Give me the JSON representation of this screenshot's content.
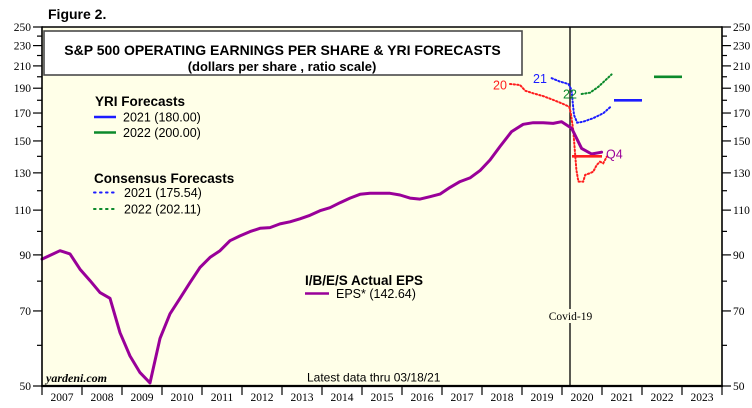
{
  "figure_label": "Figure 2.",
  "chart_data": {
    "type": "line",
    "title": "S&P 500 OPERATING EARNINGS PER SHARE & YRI FORECASTS",
    "subtitle": "(dollars per share , ratio scale)",
    "xlabel": "",
    "ylabel": "",
    "grid": false,
    "colors": {
      "plot_background": "#ffffe8",
      "title_box": "#ffffff",
      "eps": "#990099",
      "year_2020": "#ff1e1e",
      "year_2021": "#1c1cff",
      "year_2022": "#0b8a2b"
    },
    "y_axis": {
      "scale": "log",
      "range": [
        50,
        250
      ],
      "major_ticks": [
        250,
        230,
        210,
        190,
        170,
        150,
        130,
        110,
        90,
        70,
        50
      ],
      "minor_ticks": [
        240,
        220,
        200,
        180,
        160,
        140,
        120,
        100,
        80,
        60
      ],
      "sides": [
        "left",
        "right"
      ]
    },
    "x_axis": {
      "range": [
        2007,
        2024
      ],
      "tick_labels": [
        "2007",
        "2008",
        "2009",
        "2010",
        "2011",
        "2012",
        "2013",
        "2014",
        "2015",
        "2016",
        "2017",
        "2018",
        "2019",
        "2020",
        "2021",
        "2022",
        "2023"
      ]
    },
    "series": [
      {
        "id": "eps-actual",
        "name": "EPS*",
        "color": "#990099",
        "style": "solid",
        "latest": 142.64,
        "points": [
          [
            2007.0,
            88.3
          ],
          [
            2007.45,
            91.7
          ],
          [
            2007.7,
            90.4
          ],
          [
            2007.95,
            84.4
          ],
          [
            2008.2,
            80.2
          ],
          [
            2008.45,
            76.0
          ],
          [
            2008.7,
            74.1
          ],
          [
            2008.95,
            63.5
          ],
          [
            2009.2,
            57.2
          ],
          [
            2009.45,
            53.1
          ],
          [
            2009.7,
            50.7
          ],
          [
            2009.95,
            61.9
          ],
          [
            2010.2,
            69.1
          ],
          [
            2010.45,
            74.1
          ],
          [
            2010.7,
            79.5
          ],
          [
            2010.95,
            85.1
          ],
          [
            2011.2,
            89.0
          ],
          [
            2011.45,
            91.7
          ],
          [
            2011.7,
            95.9
          ],
          [
            2011.95,
            98.0
          ],
          [
            2012.2,
            99.9
          ],
          [
            2012.45,
            101.4
          ],
          [
            2012.7,
            101.7
          ],
          [
            2012.95,
            103.4
          ],
          [
            2013.2,
            104.4
          ],
          [
            2013.45,
            105.8
          ],
          [
            2013.7,
            107.5
          ],
          [
            2013.95,
            109.7
          ],
          [
            2014.2,
            111.2
          ],
          [
            2014.45,
            113.7
          ],
          [
            2014.7,
            116.1
          ],
          [
            2014.95,
            118.1
          ],
          [
            2015.2,
            118.6
          ],
          [
            2015.45,
            118.6
          ],
          [
            2015.7,
            118.6
          ],
          [
            2015.95,
            117.7
          ],
          [
            2016.2,
            116.1
          ],
          [
            2016.45,
            115.6
          ],
          [
            2016.7,
            116.8
          ],
          [
            2016.95,
            118.2
          ],
          [
            2017.2,
            121.8
          ],
          [
            2017.45,
            125.0
          ],
          [
            2017.7,
            127.1
          ],
          [
            2017.95,
            131.3
          ],
          [
            2018.2,
            137.7
          ],
          [
            2018.45,
            146.3
          ],
          [
            2018.74,
            156.4
          ],
          [
            2019.03,
            161.6
          ],
          [
            2019.28,
            162.8
          ],
          [
            2019.53,
            162.8
          ],
          [
            2019.78,
            162.3
          ],
          [
            2019.99,
            163.5
          ],
          [
            2020.24,
            158.8
          ],
          [
            2020.49,
            145.1
          ],
          [
            2020.74,
            141.5
          ],
          [
            2020.99,
            142.64
          ]
        ]
      },
      {
        "id": "consensus-2020",
        "name": "Consensus 2020",
        "color": "#ff1e1e",
        "style": "dotted",
        "points": [
          [
            2018.7,
            193.6
          ],
          [
            2018.95,
            192.8
          ],
          [
            2019.08,
            187.9
          ],
          [
            2019.28,
            185.7
          ],
          [
            2019.53,
            183.4
          ],
          [
            2019.78,
            180.3
          ],
          [
            2019.99,
            177.6
          ],
          [
            2020.18,
            174.9
          ],
          [
            2020.22,
            170.0
          ],
          [
            2020.28,
            157.6
          ],
          [
            2020.32,
            144.0
          ],
          [
            2020.36,
            131.7
          ],
          [
            2020.41,
            125.0
          ],
          [
            2020.53,
            125.0
          ],
          [
            2020.58,
            128.8
          ],
          [
            2020.7,
            129.8
          ],
          [
            2020.78,
            130.7
          ],
          [
            2020.87,
            134.7
          ],
          [
            2020.95,
            136.7
          ],
          [
            2021.03,
            135.7
          ],
          [
            2021.12,
            139.8
          ]
        ]
      },
      {
        "id": "consensus-2021",
        "name": "Consensus 2021",
        "color": "#1c1cff",
        "style": "dotted",
        "latest": 175.54,
        "points": [
          [
            2019.74,
            198.7
          ],
          [
            2019.95,
            195.7
          ],
          [
            2020.16,
            193.6
          ],
          [
            2020.24,
            188.5
          ],
          [
            2020.27,
            177.6
          ],
          [
            2020.3,
            168.5
          ],
          [
            2020.38,
            162.8
          ],
          [
            2020.53,
            163.5
          ],
          [
            2020.78,
            166.1
          ],
          [
            2021.03,
            169.8
          ],
          [
            2021.24,
            175.54
          ]
        ]
      },
      {
        "id": "consensus-2022",
        "name": "Consensus 2022",
        "color": "#0b8a2b",
        "style": "dotted",
        "latest": 202.11,
        "points": [
          [
            2020.49,
            185.1
          ],
          [
            2020.7,
            186.2
          ],
          [
            2020.91,
            191.2
          ],
          [
            2021.24,
            202.11
          ]
        ]
      }
    ],
    "forecast_levels": [
      {
        "id": "yri-2020",
        "name": "YRI 2020",
        "value": 140,
        "x_range": [
          2020.25,
          2021.0
        ],
        "color": "#ff1e1e"
      },
      {
        "id": "yri-2021",
        "name": "YRI 2021",
        "value": 180,
        "x_range": [
          2021.3,
          2022.0
        ],
        "color": "#1c1cff"
      },
      {
        "id": "yri-2022",
        "name": "YRI 2022",
        "value": 200,
        "x_range": [
          2022.3,
          2023.0
        ],
        "color": "#0b8a2b"
      }
    ],
    "legend": [
      {
        "title": "YRI Forecasts",
        "items": [
          {
            "label": "2021 (180.00)",
            "color": "#1c1cff",
            "style": "solid"
          },
          {
            "label": "2022 (200.00)",
            "color": "#0b8a2b",
            "style": "solid"
          }
        ]
      },
      {
        "title": "Consensus Forecasts",
        "items": [
          {
            "label": "2021 (175.54)",
            "color": "#1c1cff",
            "style": "dotted"
          },
          {
            "label": "2022 (202.11)",
            "color": "#0b8a2b",
            "style": "dotted"
          }
        ]
      },
      {
        "title": "I/B/E/S Actual EPS",
        "items": [
          {
            "label": "EPS* (142.64)",
            "color": "#990099",
            "style": "solid"
          }
        ]
      }
    ],
    "annotations": {
      "consensus_2020_label": {
        "text": "20",
        "color": "#ff1e1e"
      },
      "consensus_2021_label": {
        "text": "21",
        "color": "#1c1cff"
      },
      "consensus_2022_label": {
        "text": "22",
        "color": "#0b8a2b"
      },
      "eps_q4_label": {
        "text": "Q4",
        "color": "#990099"
      },
      "covid": {
        "text": "Covid-19",
        "x": 2020.2
      }
    },
    "source": "yardeni.com",
    "footnote": "Latest data thru 03/18/21"
  }
}
